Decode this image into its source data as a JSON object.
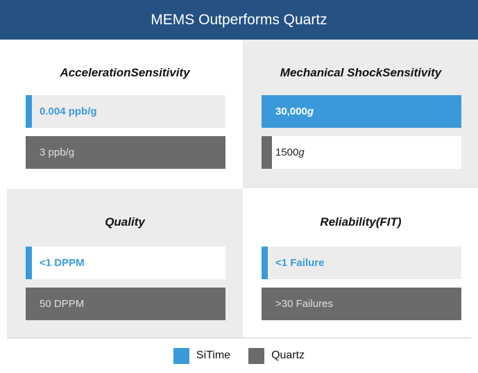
{
  "header": {
    "title": "MEMS Outperforms Quartz"
  },
  "legend": [
    {
      "name": "SiTime",
      "color": "#3a9ad9"
    },
    {
      "name": "Quartz",
      "color": "#6b6b6b"
    }
  ],
  "panels": [
    {
      "heading": [
        "Acceleration",
        "Sensitivity"
      ],
      "background": "#ffffff",
      "rows": [
        {
          "series": 0,
          "full": false,
          "label": "0.004 ppb/g"
        },
        {
          "series": 1,
          "full": true,
          "label": "3 ppb/g"
        }
      ]
    },
    {
      "heading": [
        "Mechanical Shock",
        "Sensitivity"
      ],
      "background": "#ececec",
      "rows": [
        {
          "series": 0,
          "full": true,
          "label": "30,000",
          "unit": "g"
        },
        {
          "series": 1,
          "full": false,
          "label": "1500",
          "unit": "g"
        }
      ]
    },
    {
      "heading": [
        "Quality"
      ],
      "background": "#ececec",
      "rows": [
        {
          "series": 0,
          "full": false,
          "label": "<1 DPPM"
        },
        {
          "series": 1,
          "full": true,
          "label": "50 DPPM"
        }
      ]
    },
    {
      "heading": [
        "Reliability",
        "(FIT)"
      ],
      "background": "#ffffff",
      "rows": [
        {
          "series": 0,
          "full": false,
          "label": "<1 Failure"
        },
        {
          "series": 1,
          "full": true,
          "label": ">30 Failures"
        }
      ]
    }
  ]
}
